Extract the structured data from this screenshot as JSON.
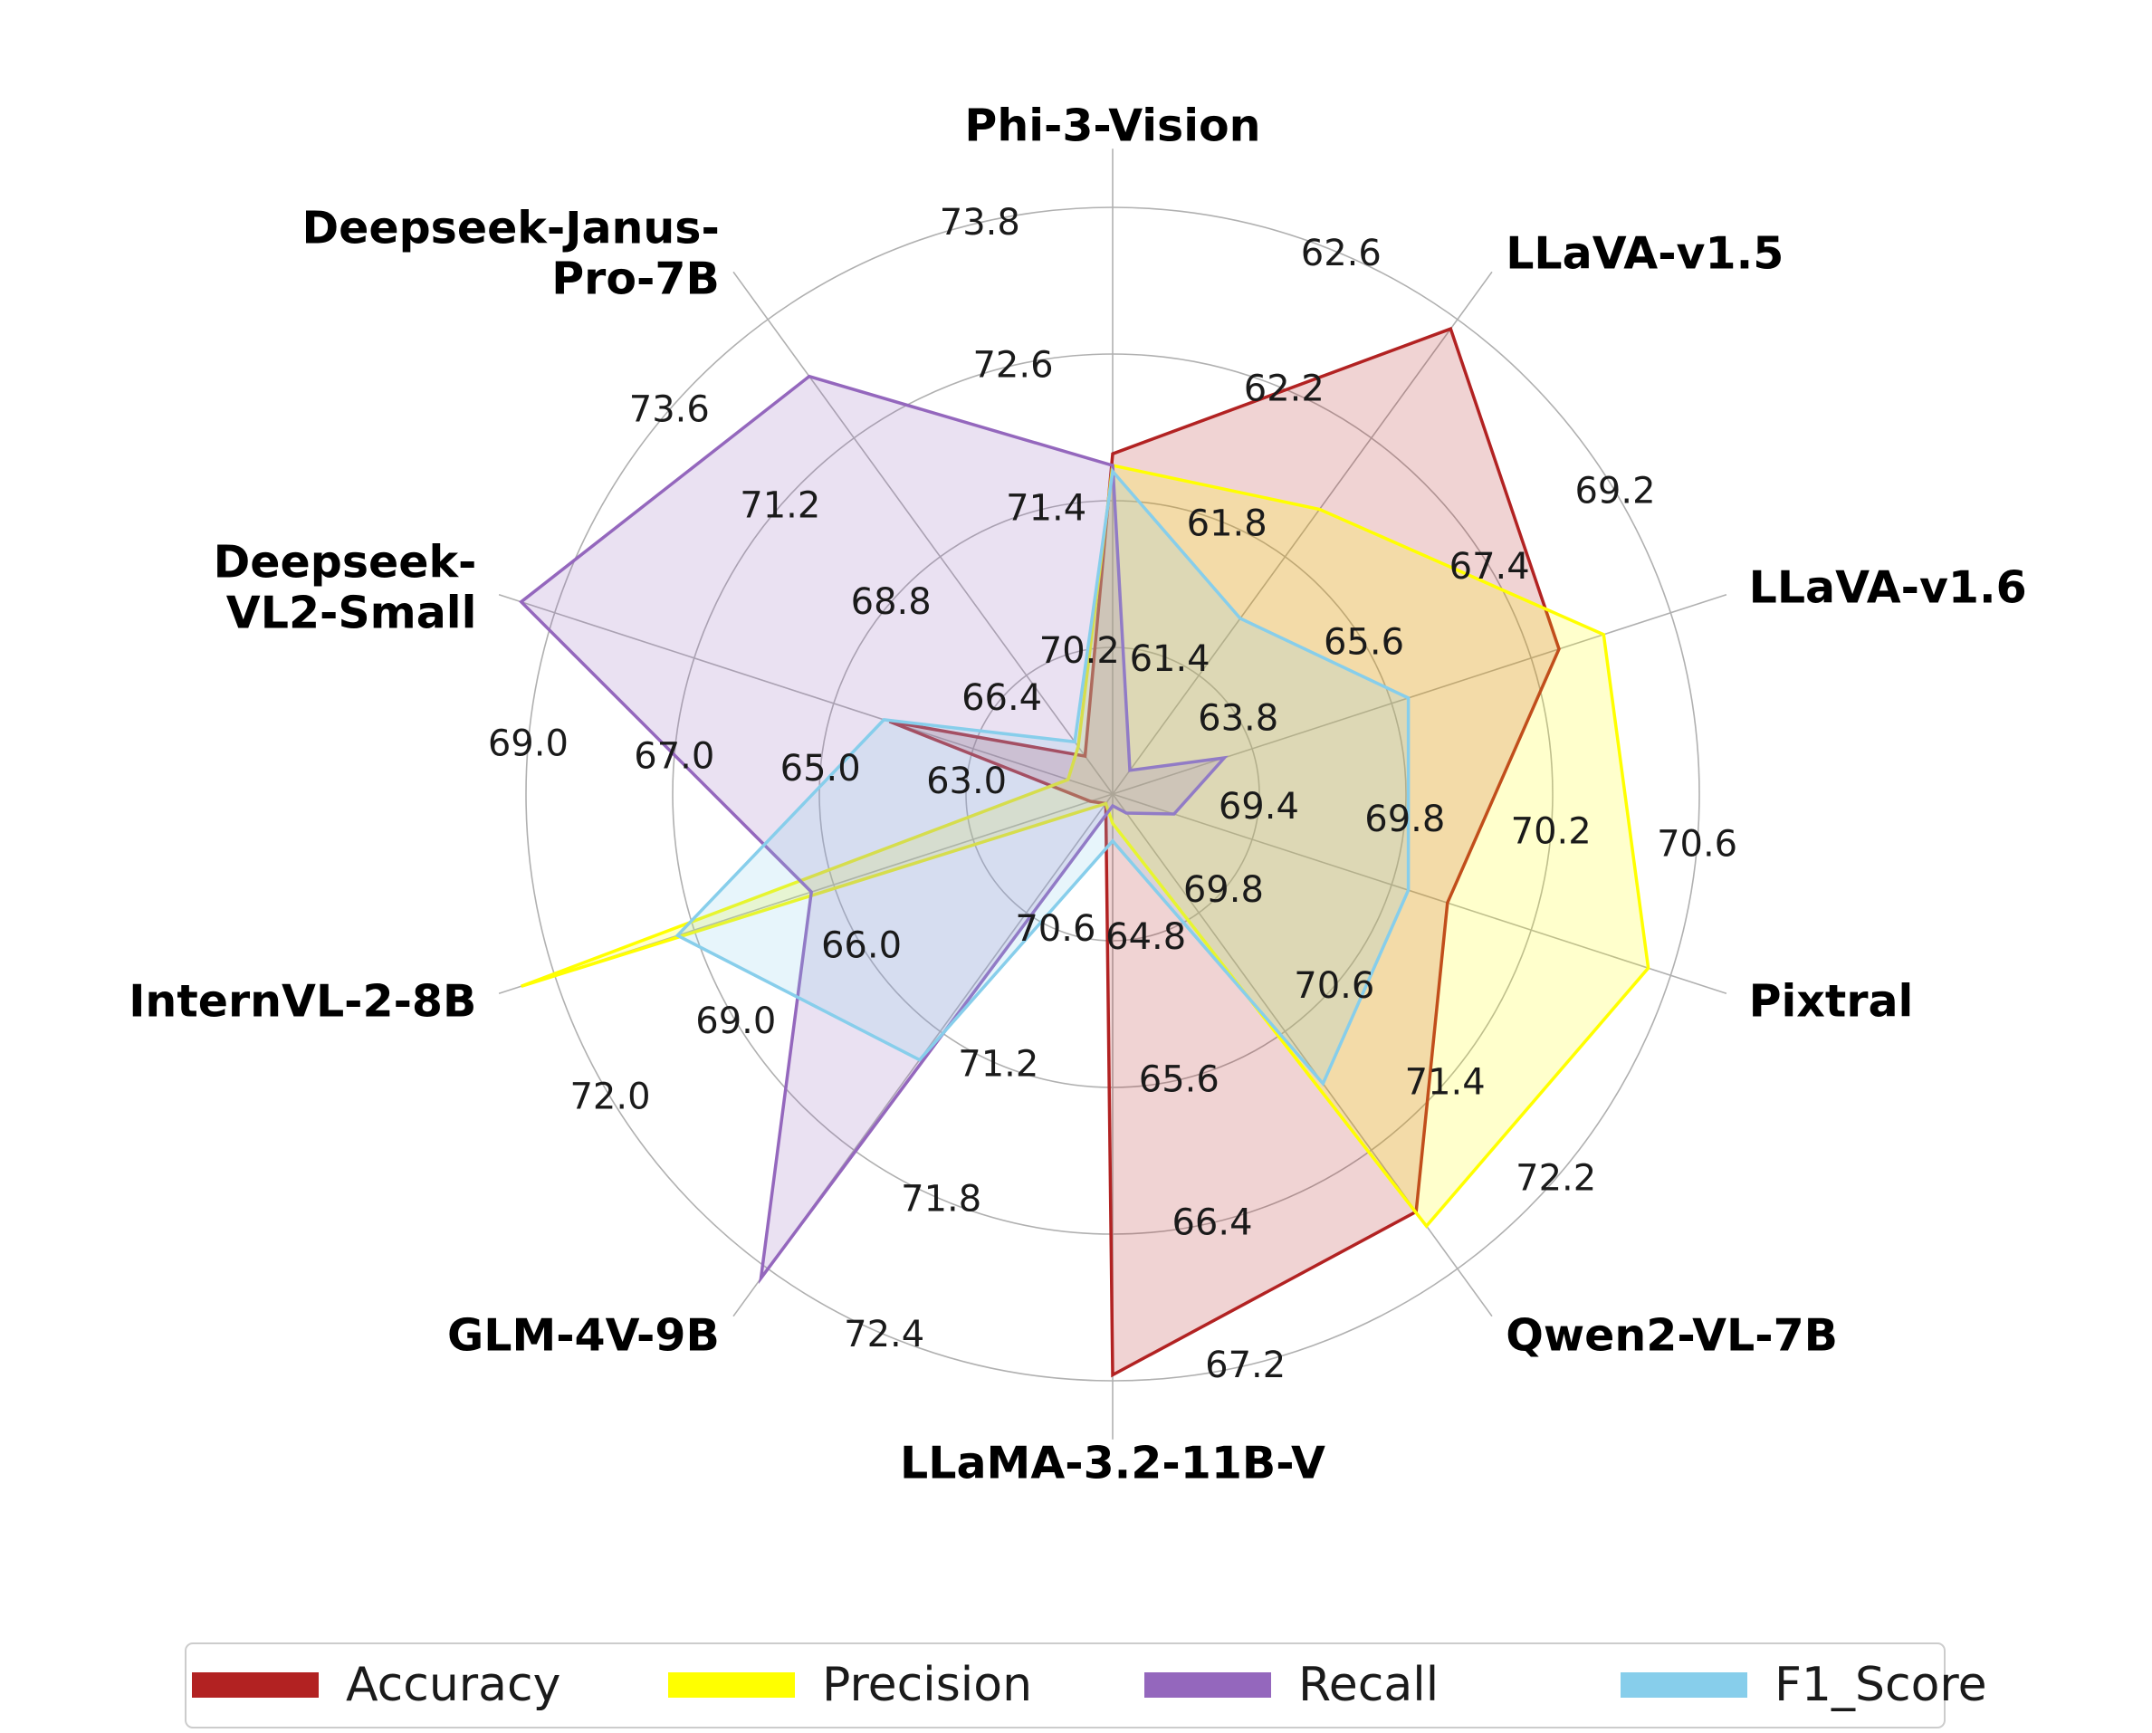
{
  "chart_data": {
    "type": "radar",
    "axes": [
      "Phi-3-Vision",
      "LLaVA-v1.5",
      "LLaVA-v1.6",
      "Pixtral",
      "Qwen2-VL-7B",
      "LLaMA-3.2-11B-V",
      "GLM-4V-9B",
      "InternVL-2-8B",
      "Deepseek-VL2-Small",
      "Deepseek-Janus-Pro-7B"
    ],
    "axis_label_lines": [
      [
        "Phi-3-Vision"
      ],
      [
        "LLaVA-v1.5"
      ],
      [
        "LLaVA-v1.6"
      ],
      [
        "Pixtral"
      ],
      [
        "Qwen2-VL-7B"
      ],
      [
        "LLaMA-3.2-11B-V"
      ],
      [
        "GLM-4V-9B"
      ],
      [
        "InternVL-2-8B"
      ],
      [
        "Deepseek-",
        "VL2-Small"
      ],
      [
        "Deepseek-Janus-",
        "Pro-7B"
      ]
    ],
    "tick_labels": [
      [
        "61.4",
        "61.8",
        "62.2",
        "62.6"
      ],
      [
        "63.8",
        "65.6",
        "67.4",
        "69.2"
      ],
      [
        "69.4",
        "69.8",
        "70.2",
        "70.6"
      ],
      [
        "69.8",
        "70.6",
        "71.4",
        "72.2"
      ],
      [
        "64.8",
        "65.6",
        "66.4",
        "67.2"
      ],
      [
        "70.6",
        "71.2",
        "71.8",
        "72.4"
      ],
      [
        "66.0",
        "69.0",
        "72.0"
      ],
      [
        "63.0",
        "65.0",
        "67.0",
        "69.0"
      ],
      [
        "66.4",
        "68.8",
        "71.2",
        "73.6"
      ],
      [
        "70.2",
        "71.4",
        "72.6",
        "73.8"
      ]
    ],
    "series": [
      {
        "name": "Accuracy",
        "color": "#b22222",
        "values": [
          0.58,
          0.98,
          0.8,
          0.6,
          0.88,
          0.99,
          0.02,
          0.04,
          0.4,
          0.08
        ]
      },
      {
        "name": "Precision",
        "color": "#ffff00",
        "values": [
          0.56,
          0.6,
          0.88,
          0.96,
          0.91,
          0.05,
          0.02,
          1.06,
          0.08,
          0.1
        ]
      },
      {
        "name": "Recall",
        "color": "#9467bd",
        "values": [
          0.56,
          0.05,
          0.2,
          0.11,
          0.04,
          0.02,
          1.02,
          0.54,
          1.06,
          0.88
        ]
      },
      {
        "name": "F1_Score",
        "color": "#87ceeb",
        "values": [
          0.55,
          0.37,
          0.53,
          0.53,
          0.61,
          0.08,
          0.56,
          0.78,
          0.41,
          0.11
        ]
      }
    ],
    "grid": true,
    "legend_position": "bottom"
  }
}
